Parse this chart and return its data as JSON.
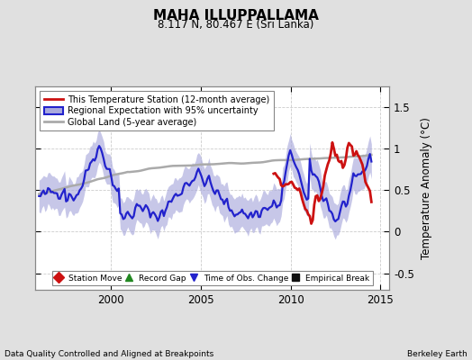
{
  "title": "MAHA ILLUPPALLAMA",
  "subtitle": "8.117 N, 80.467 E (Sri Lanka)",
  "ylabel": "Temperature Anomaly (°C)",
  "xlabel_left": "Data Quality Controlled and Aligned at Breakpoints",
  "xlabel_right": "Berkeley Earth",
  "ylim": [
    -0.7,
    1.75
  ],
  "xlim_start": 1995.8,
  "xlim_end": 2015.5,
  "yticks": [
    -0.5,
    0,
    0.5,
    1.0,
    1.5
  ],
  "xticks": [
    2000,
    2005,
    2010,
    2015
  ],
  "background_color": "#e0e0e0",
  "plot_bg_color": "#ffffff",
  "regional_color": "#2222cc",
  "regional_fill_color": "#aaaadd",
  "station_color": "#cc1111",
  "global_color": "#aaaaaa",
  "legend1_entries": [
    {
      "label": "This Temperature Station (12-month average)",
      "color": "#cc1111",
      "lw": 2.0
    },
    {
      "label": "Regional Expectation with 95% uncertainty",
      "color": "#2222cc",
      "lw": 2.0
    },
    {
      "label": "Global Land (5-year average)",
      "color": "#aaaaaa",
      "lw": 2.0
    }
  ],
  "legend2_entries": [
    {
      "label": "Station Move",
      "color": "#cc1111",
      "marker": "D"
    },
    {
      "label": "Record Gap",
      "color": "#228822",
      "marker": "^"
    },
    {
      "label": "Time of Obs. Change",
      "color": "#2222cc",
      "marker": "v"
    },
    {
      "label": "Empirical Break",
      "color": "#111111",
      "marker": "s"
    }
  ]
}
